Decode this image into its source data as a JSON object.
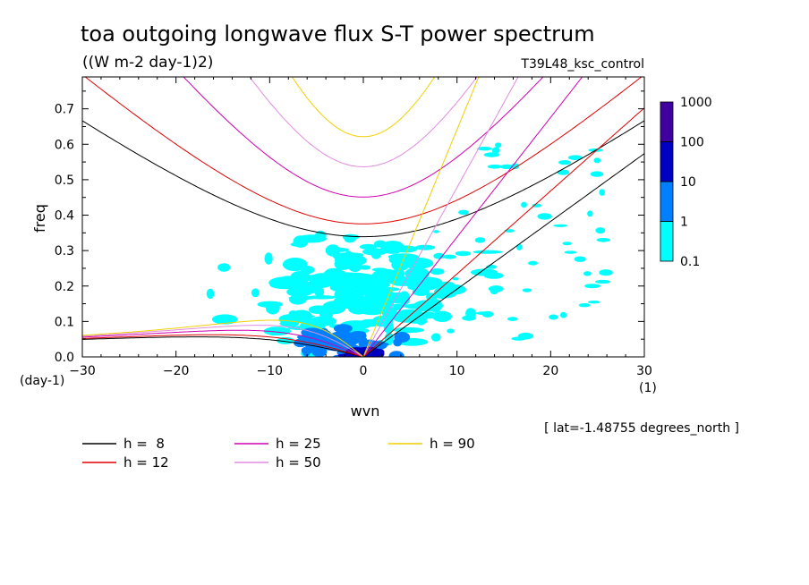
{
  "chart_data": {
    "type": "heatmap",
    "title": "toa outgoing longwave flux S-T power spectrum",
    "subtitle": "((W m-2 day-1)2)",
    "run_label": "T39L48_ksc_control",
    "xlabel": "wvn",
    "ylabel": "freq",
    "x_unit": "(1)",
    "y_unit": "(day-1)",
    "xlim": [
      -30,
      30
    ],
    "ylim": [
      0,
      0.79
    ],
    "x_ticks": [
      -30,
      -20,
      -10,
      0,
      10,
      20,
      30
    ],
    "x_tick_labels": [
      "-30",
      "-20",
      "-10",
      "0",
      "10",
      "20",
      "30"
    ],
    "y_ticks": [
      0.0,
      0.1,
      0.2,
      0.3,
      0.4,
      0.5,
      0.6,
      0.7
    ],
    "y_tick_labels": [
      "0.0",
      "0.1",
      "0.2",
      "0.3",
      "0.4",
      "0.5",
      "0.6",
      "0.7"
    ],
    "location_note": "[ lat=-1.48755 degrees_north ]",
    "colorbar": {
      "levels": [
        "0.1",
        "1",
        "10",
        "100",
        "1000"
      ],
      "colors": [
        "#00ffff",
        "#0080ff",
        "#0000c0",
        "#4000a0"
      ]
    },
    "dispersion_curves": [
      {
        "label": "h =  8",
        "h": 8,
        "color": "#000000"
      },
      {
        "label": "h = 12",
        "h": 12,
        "color": "#e00000"
      },
      {
        "label": "h = 25",
        "h": 25,
        "color": "#d000b0"
      },
      {
        "label": "h = 50",
        "h": 50,
        "color": "#e08ce0"
      },
      {
        "label": "h = 90",
        "h": 90,
        "color": "#f0d000"
      }
    ],
    "power_regions": [
      {
        "level": "0.1-1",
        "color": "#00ffff",
        "wvn_range": [
          -21,
          18
        ],
        "freq_range": [
          0.0,
          0.5
        ],
        "center": [
          0,
          0.18
        ]
      },
      {
        "level": "1-10",
        "color": "#0080ff",
        "wvn_range": [
          -10,
          8
        ],
        "freq_range": [
          0.0,
          0.12
        ],
        "center": [
          -2,
          0.04
        ]
      },
      {
        "level": "10-100",
        "color": "#0000c0",
        "wvn_range": [
          -3,
          3
        ],
        "freq_range": [
          0.0,
          0.03
        ],
        "center": [
          0,
          0.01
        ]
      }
    ]
  }
}
